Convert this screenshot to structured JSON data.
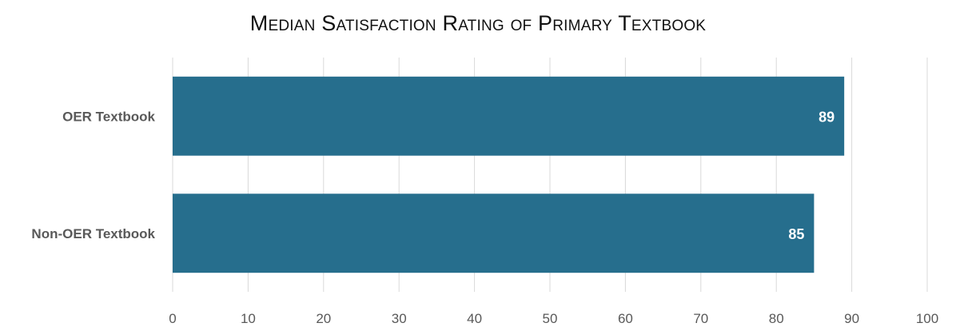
{
  "chart_data": {
    "type": "bar",
    "orientation": "horizontal",
    "title": "Median Satisfaction Rating of Primary Textbook",
    "categories": [
      "OER Textbook",
      "Non-OER Textbook"
    ],
    "values": [
      89,
      85
    ],
    "data_labels": [
      "89",
      "85"
    ],
    "xlim": [
      0,
      100
    ],
    "xticks": [
      0,
      10,
      20,
      30,
      40,
      50,
      60,
      70,
      80,
      90,
      100
    ],
    "xtick_labels": [
      "0",
      "10",
      "20",
      "30",
      "40",
      "50",
      "60",
      "70",
      "80",
      "90",
      "100"
    ],
    "xlabel": "",
    "ylabel": "",
    "grid": "vertical",
    "legend": "none",
    "colors": {
      "bar": "#266E8D",
      "grid": "#D9D9D9",
      "axis_text": "#595959",
      "data_label": "#FFFFFF"
    }
  }
}
